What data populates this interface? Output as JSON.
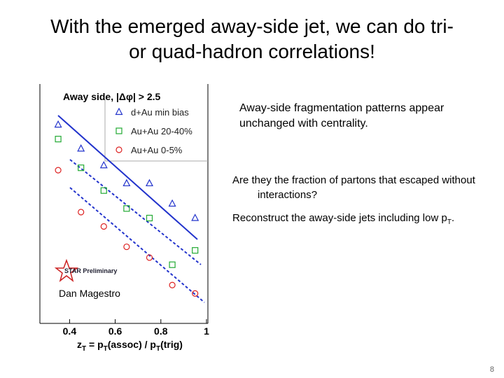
{
  "slide": {
    "title_lines": [
      "With the emerged away-side jet, we can do tri-",
      "or quad-hadron correlations!"
    ],
    "note": "Away-side fragmentation patterns appear unchanged with centrality.",
    "bullets": [
      [
        "Are they the fraction of partons that escaped without interactions?"
      ],
      [
        "Reconstruct the away-side jets including low p",
        "T",
        "."
      ]
    ],
    "author": "Dan Magestro",
    "logo": "STAR Preliminary",
    "page_number": "8"
  },
  "chart_data": {
    "type": "scatter",
    "title": "Away side, |Δφ| > 2.5",
    "x_label": [
      "z",
      "T",
      " = p",
      "T",
      "(assoc) / p",
      "T",
      "(trig)"
    ],
    "x": [
      0.35,
      0.45,
      0.55,
      0.65,
      0.75,
      0.85,
      0.95
    ],
    "xlim": [
      0.27,
      1.0
    ],
    "xticks": [
      0.4,
      0.6,
      0.8,
      1
    ],
    "ylim": [
      0,
      100
    ],
    "series": [
      {
        "name": "d+Au min bias",
        "color": "#2233cc",
        "marker": "triangle",
        "values": [
          83,
          73,
          66,
          58.5,
          58.5,
          50,
          44
        ]
      },
      {
        "name": "Au+Au 20-40%",
        "color": "#22aa33",
        "marker": "square",
        "values": [
          77,
          65,
          55.5,
          48,
          44,
          24.5,
          30.5
        ]
      },
      {
        "name": "Au+Au 0-5%",
        "color": "#dd2222",
        "marker": "circle",
        "values": [
          64,
          46.5,
          40.5,
          32,
          27.5,
          16,
          12.5
        ]
      }
    ]
  }
}
